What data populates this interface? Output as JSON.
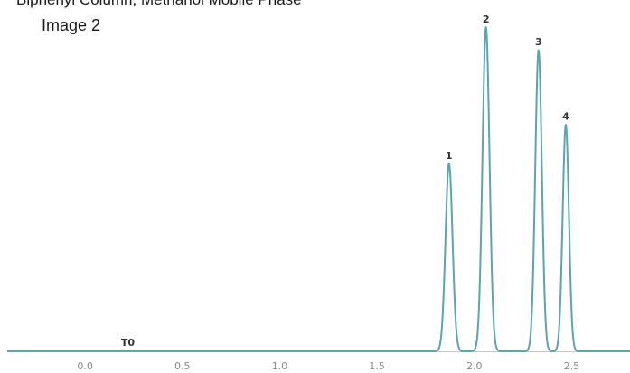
{
  "chart_data": {
    "type": "line",
    "title": "Biphenyl Column, Methanol Mobile Phase",
    "subtitle": "Image 2",
    "xlabel": "",
    "ylabel": "",
    "xlim": [
      -0.4,
      2.8
    ],
    "ylim": [
      0,
      100
    ],
    "x_ticks": [
      0.0,
      0.5,
      1.0,
      1.5,
      2.0,
      2.5
    ],
    "x_tick_labels": [
      "0.0",
      "0.5",
      "1.0",
      "1.5",
      "2.0",
      "2.5"
    ],
    "grid": false,
    "line_color": "#5aa5ae",
    "t0": {
      "label": "T0",
      "x": 0.22
    },
    "peaks": [
      {
        "label": "1",
        "x": 1.87,
        "height": 58,
        "width": 0.018
      },
      {
        "label": "2",
        "x": 2.06,
        "height": 100,
        "width": 0.018
      },
      {
        "label": "3",
        "x": 2.33,
        "height": 93,
        "width": 0.017
      },
      {
        "label": "4",
        "x": 2.47,
        "height": 70,
        "width": 0.016
      }
    ]
  }
}
